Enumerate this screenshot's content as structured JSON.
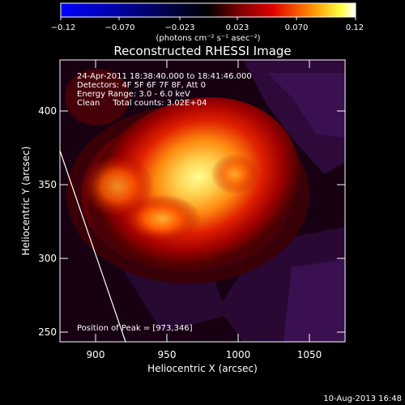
{
  "colorbar": {
    "tick_labels": [
      "−0.12",
      "−0.070",
      "−0.023",
      "0.023",
      "0.070",
      "0.12"
    ],
    "unit_label": "(photons cm⁻² s⁻¹ asec⁻²)"
  },
  "plot": {
    "title": "Reconstructed RHESSI Image",
    "info_lines": [
      "24-Apr-2011 18:38:40.000 to 18:41:46.000",
      "Detectors: 4F 5F 6F 7F 8F, Att 0",
      "Energy Range: 3.0 - 6.0 keV",
      "Clean     Total counts: 3.02E+04"
    ],
    "peak_label": "Position of Peak = [973,346]",
    "x_axis": {
      "label": "Heliocentric X (arcsec)",
      "ticks": [
        "900",
        "950",
        "1000",
        "1050"
      ]
    },
    "y_axis": {
      "label": "Heliocentric Y (arcsec)",
      "ticks": [
        "400",
        "350",
        "300",
        "250"
      ]
    }
  },
  "footer": {
    "timestamp": "10-Aug-2013 16:48"
  },
  "colors": {
    "background": "#000000",
    "negative_end": "#0000ff",
    "positive_end": "#ffffff",
    "hot_core": "#ffff80"
  }
}
